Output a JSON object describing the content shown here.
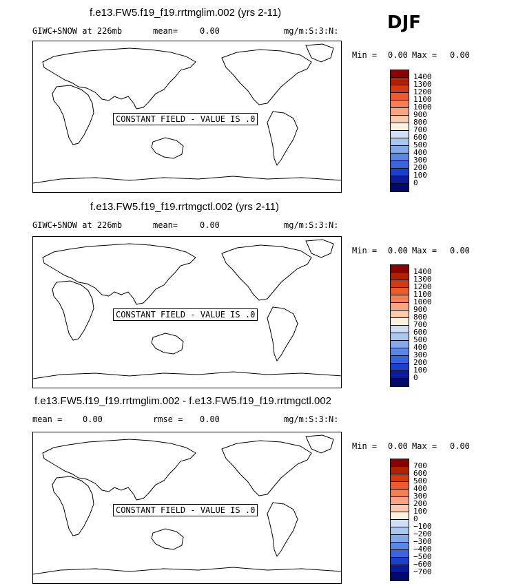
{
  "season": "DJF",
  "panels": [
    {
      "title": "f.e13.FW5.f19_f19.rrtmglim.002 (yrs 2-11)",
      "left_label": "GIWC+SNOW at 226mb",
      "mean_label": "mean=",
      "mean_value": "0.00",
      "units": "mg/m:S:3:N:",
      "min_label": "Min =",
      "min_value": "0.00",
      "max_label": "Max =",
      "max_value": "0.00",
      "constant_label": "CONSTANT FIELD - VALUE IS .0",
      "colorbar_labels": [
        "1400",
        "1300",
        "1200",
        "1100",
        "1000",
        "900",
        "800",
        "700",
        "600",
        "500",
        "400",
        "300",
        "200",
        "100",
        "0"
      ]
    },
    {
      "title": "f.e13.FW5.f19_f19.rrtmgctl.002 (yrs 2-11)",
      "left_label": "GIWC+SNOW at 226mb",
      "mean_label": "mean=",
      "mean_value": "0.00",
      "units": "mg/m:S:3:N:",
      "min_label": "Min =",
      "min_value": "0.00",
      "max_label": "Max =",
      "max_value": "0.00",
      "constant_label": "CONSTANT FIELD - VALUE IS .0",
      "colorbar_labels": [
        "1400",
        "1300",
        "1200",
        "1100",
        "1000",
        "900",
        "800",
        "700",
        "600",
        "500",
        "400",
        "300",
        "200",
        "100",
        "0"
      ]
    },
    {
      "title": "f.e13.FW5.f19_f19.rrtmglim.002 - f.e13.FW5.f19_f19.rrtmgctl.002",
      "left_label": "mean =",
      "mean_label": "rmse =",
      "left_value": "0.00",
      "mean_value": "0.00",
      "units": "mg/m:S:3:N:",
      "min_label": "Min =",
      "min_value": "0.00",
      "max_label": "Max =",
      "max_value": "0.00",
      "constant_label": "CONSTANT FIELD - VALUE IS .0",
      "colorbar_labels": [
        "700",
        "600",
        "500",
        "400",
        "300",
        "200",
        "100",
        "0",
        "−100",
        "−200",
        "−300",
        "−400",
        "−500",
        "−600",
        "−700"
      ]
    }
  ],
  "colors": {
    "scale": [
      "#8b0000",
      "#b22000",
      "#d43a12",
      "#ee5a2e",
      "#f57e52",
      "#f9a47e",
      "#fcc9aa",
      "#fdf0dc",
      "#cfe0f6",
      "#a9c8f0",
      "#82aaea",
      "#5988e6",
      "#3766e0",
      "#1a40cc",
      "#0a1c9a",
      "#000a6e"
    ]
  }
}
